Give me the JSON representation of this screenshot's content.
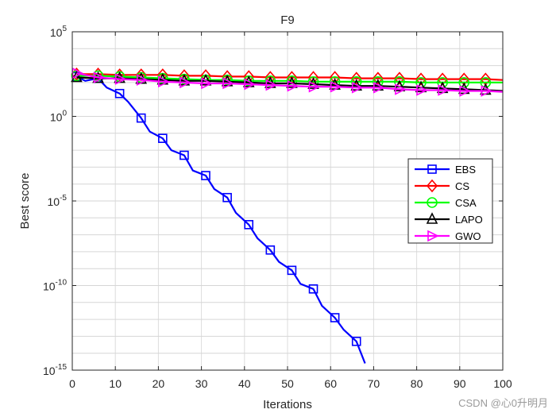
{
  "chart_data": {
    "type": "line",
    "title": "F9",
    "xlabel": "Iterations",
    "ylabel": "Best score",
    "y_scale": "log",
    "xlim": [
      0,
      100
    ],
    "ylim_exp": [
      -15,
      5
    ],
    "x_ticks": [
      0,
      10,
      20,
      30,
      40,
      50,
      60,
      70,
      80,
      90,
      100
    ],
    "y_tick_exponents": [
      5,
      0,
      -5,
      -10,
      -15
    ],
    "grid": true,
    "legend_position": "right-middle",
    "series": [
      {
        "name": "EBS",
        "color": "#0000ff",
        "marker": "square",
        "x": [
          1,
          3,
          6,
          8,
          11,
          13,
          16,
          18,
          21,
          23,
          26,
          28,
          31,
          33,
          36,
          38,
          41,
          43,
          46,
          48,
          51,
          53,
          56,
          58,
          61,
          63,
          66,
          68
        ],
        "log10": [
          2.35,
          2.1,
          2.25,
          1.7,
          1.35,
          0.85,
          -0.1,
          -0.9,
          -1.3,
          -2.0,
          -2.3,
          -3.2,
          -3.5,
          -4.3,
          -4.8,
          -5.7,
          -6.4,
          -7.2,
          -7.9,
          -8.6,
          -9.1,
          -9.9,
          -10.2,
          -11.2,
          -11.9,
          -12.6,
          -13.3,
          -14.6
        ]
      },
      {
        "name": "CS",
        "color": "#ff0000",
        "marker": "diamond",
        "x": [
          1,
          6,
          11,
          16,
          21,
          26,
          31,
          36,
          41,
          46,
          51,
          56,
          61,
          66,
          71,
          76,
          81,
          86,
          91,
          96,
          100
        ],
        "log10": [
          2.5,
          2.5,
          2.45,
          2.45,
          2.45,
          2.4,
          2.4,
          2.35,
          2.35,
          2.3,
          2.3,
          2.3,
          2.3,
          2.25,
          2.25,
          2.25,
          2.2,
          2.2,
          2.2,
          2.2,
          2.15
        ]
      },
      {
        "name": "CSA",
        "color": "#00ff00",
        "marker": "circle",
        "x": [
          1,
          6,
          11,
          16,
          21,
          26,
          31,
          36,
          41,
          46,
          51,
          56,
          61,
          66,
          71,
          76,
          81,
          86,
          91,
          96,
          100
        ],
        "log10": [
          2.4,
          2.4,
          2.35,
          2.3,
          2.25,
          2.2,
          2.15,
          2.15,
          2.1,
          2.1,
          2.1,
          2.05,
          2.05,
          2.05,
          2.05,
          2.05,
          2.0,
          2.0,
          2.0,
          2.0,
          2.0
        ]
      },
      {
        "name": "LAPO",
        "color": "#000000",
        "marker": "triangle-up",
        "x": [
          1,
          6,
          11,
          16,
          21,
          26,
          31,
          36,
          41,
          46,
          51,
          56,
          61,
          66,
          71,
          76,
          81,
          86,
          91,
          96,
          100
        ],
        "log10": [
          2.3,
          2.25,
          2.25,
          2.2,
          2.15,
          2.1,
          2.1,
          2.05,
          2.0,
          1.95,
          1.95,
          1.9,
          1.85,
          1.8,
          1.8,
          1.75,
          1.7,
          1.65,
          1.6,
          1.55,
          1.5
        ]
      },
      {
        "name": "GWO",
        "color": "#ff00ff",
        "marker": "triangle-right",
        "x": [
          1,
          6,
          11,
          16,
          21,
          26,
          31,
          36,
          41,
          46,
          51,
          56,
          61,
          66,
          71,
          76,
          81,
          86,
          91,
          96,
          100
        ],
        "log10": [
          2.55,
          2.3,
          2.2,
          2.15,
          2.05,
          2.0,
          1.95,
          1.95,
          1.9,
          1.85,
          1.8,
          1.75,
          1.75,
          1.7,
          1.7,
          1.6,
          1.55,
          1.55,
          1.5,
          1.5,
          1.45
        ]
      }
    ]
  },
  "watermark": "CSDN @心0升明月"
}
